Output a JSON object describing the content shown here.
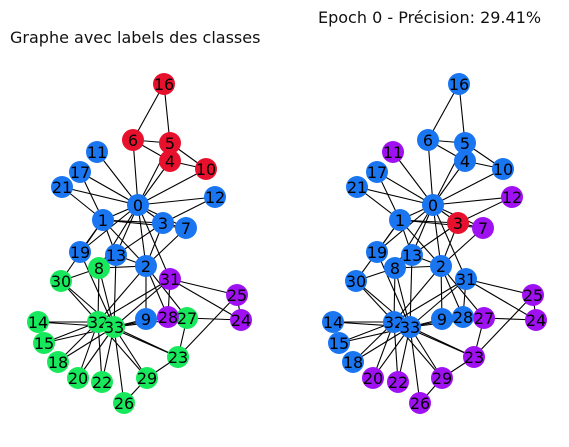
{
  "titles": {
    "left": "Graphe avec labels des classes",
    "right": "Epoch 0 - Précision: 29.41%"
  },
  "colors": {
    "blue": "#1a75f0",
    "red": "#e8112d",
    "green": "#17e85c",
    "purple": "#a011f2"
  },
  "nodes": [
    "0",
    "1",
    "2",
    "3",
    "4",
    "5",
    "6",
    "7",
    "8",
    "9",
    "10",
    "11",
    "12",
    "13",
    "14",
    "15",
    "16",
    "17",
    "18",
    "19",
    "20",
    "21",
    "22",
    "23",
    "24",
    "25",
    "26",
    "27",
    "28",
    "29",
    "30",
    "31",
    "32",
    "33"
  ],
  "edges": [
    [
      0,
      1
    ],
    [
      0,
      2
    ],
    [
      0,
      3
    ],
    [
      0,
      4
    ],
    [
      0,
      5
    ],
    [
      0,
      6
    ],
    [
      0,
      7
    ],
    [
      0,
      8
    ],
    [
      0,
      10
    ],
    [
      0,
      11
    ],
    [
      0,
      12
    ],
    [
      0,
      13
    ],
    [
      0,
      17
    ],
    [
      0,
      19
    ],
    [
      0,
      21
    ],
    [
      0,
      31
    ],
    [
      1,
      2
    ],
    [
      1,
      3
    ],
    [
      1,
      7
    ],
    [
      1,
      13
    ],
    [
      1,
      17
    ],
    [
      1,
      19
    ],
    [
      1,
      21
    ],
    [
      1,
      30
    ],
    [
      2,
      3
    ],
    [
      2,
      7
    ],
    [
      2,
      8
    ],
    [
      2,
      9
    ],
    [
      2,
      13
    ],
    [
      2,
      27
    ],
    [
      2,
      28
    ],
    [
      2,
      32
    ],
    [
      3,
      7
    ],
    [
      3,
      12
    ],
    [
      3,
      13
    ],
    [
      4,
      6
    ],
    [
      4,
      10
    ],
    [
      5,
      6
    ],
    [
      5,
      10
    ],
    [
      5,
      16
    ],
    [
      6,
      16
    ],
    [
      8,
      30
    ],
    [
      8,
      32
    ],
    [
      8,
      33
    ],
    [
      9,
      33
    ],
    [
      13,
      33
    ],
    [
      14,
      32
    ],
    [
      14,
      33
    ],
    [
      15,
      32
    ],
    [
      15,
      33
    ],
    [
      18,
      32
    ],
    [
      18,
      33
    ],
    [
      19,
      33
    ],
    [
      20,
      32
    ],
    [
      20,
      33
    ],
    [
      22,
      32
    ],
    [
      22,
      33
    ],
    [
      23,
      25
    ],
    [
      23,
      27
    ],
    [
      23,
      29
    ],
    [
      23,
      32
    ],
    [
      23,
      33
    ],
    [
      24,
      25
    ],
    [
      24,
      27
    ],
    [
      24,
      31
    ],
    [
      25,
      31
    ],
    [
      26,
      29
    ],
    [
      26,
      33
    ],
    [
      27,
      33
    ],
    [
      28,
      31
    ],
    [
      28,
      33
    ],
    [
      29,
      32
    ],
    [
      29,
      33
    ],
    [
      30,
      32
    ],
    [
      30,
      33
    ],
    [
      31,
      32
    ],
    [
      31,
      33
    ],
    [
      32,
      33
    ]
  ],
  "graphs": [
    {
      "name": "true-labels",
      "node_colors": [
        "blue",
        "blue",
        "blue",
        "blue",
        "red",
        "red",
        "red",
        "blue",
        "green",
        "blue",
        "red",
        "blue",
        "blue",
        "blue",
        "green",
        "green",
        "red",
        "blue",
        "green",
        "blue",
        "green",
        "blue",
        "green",
        "green",
        "purple",
        "purple",
        "green",
        "green",
        "purple",
        "green",
        "green",
        "purple",
        "green",
        "green"
      ]
    },
    {
      "name": "predicted-labels",
      "node_colors": [
        "blue",
        "blue",
        "blue",
        "red",
        "blue",
        "blue",
        "blue",
        "purple",
        "blue",
        "blue",
        "blue",
        "purple",
        "purple",
        "blue",
        "blue",
        "blue",
        "blue",
        "blue",
        "blue",
        "blue",
        "purple",
        "blue",
        "purple",
        "purple",
        "purple",
        "purple",
        "purple",
        "purple",
        "blue",
        "purple",
        "blue",
        "blue",
        "blue",
        "blue"
      ]
    }
  ]
}
